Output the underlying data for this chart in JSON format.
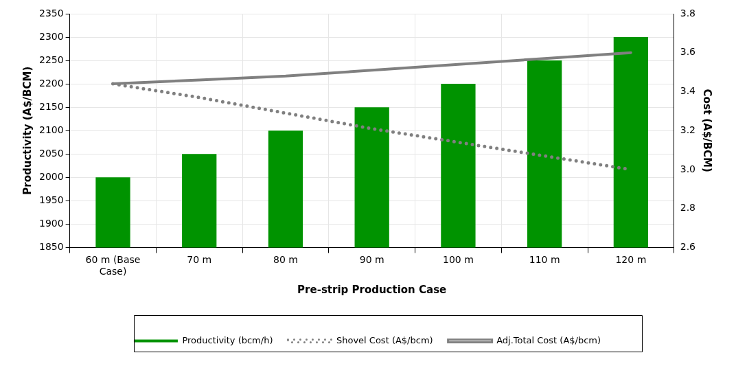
{
  "chart_data": {
    "type": "bar",
    "xlabel": "Pre-strip Production Case",
    "ylabel": "Productivity (A$/BCM)",
    "y2label": "Cost (A$/BCM)",
    "categories": [
      "60 m (Base Case)",
      "70 m",
      "80 m",
      "90 m",
      "100 m",
      "110 m",
      "120 m"
    ],
    "series": [
      {
        "name": "Productivity (bcm/h)",
        "color": "#009300",
        "values": [
          2000,
          2050,
          2100,
          2150,
          2200,
          2250,
          2300
        ]
      },
      {
        "name": "Shovel Cost (A$/bcm)",
        "type": "line",
        "axis": "y2",
        "line_style": "dotted",
        "marker": "none",
        "color": "#808080",
        "values": [
          3.44,
          3.37,
          3.29,
          3.21,
          3.14,
          3.07,
          3.0
        ]
      },
      {
        "name": "Adj.Total Cost (A$/bcm)",
        "type": "line",
        "axis": "y2",
        "line_style": "solid",
        "marker": "none",
        "color": "#808080",
        "values": [
          3.44,
          3.46,
          3.48,
          3.51,
          3.54,
          3.57,
          3.6
        ]
      }
    ],
    "ylim": [
      1850,
      2350
    ],
    "yticks": [
      1850,
      1900,
      1950,
      2000,
      2050,
      2100,
      2150,
      2200,
      2250,
      2300,
      2350
    ],
    "y2lim": [
      2.6,
      3.8
    ],
    "y2ticks": [
      {
        "value": 2.6,
        "label": "2.6"
      },
      {
        "value": 2.8,
        "label": "2.8"
      },
      {
        "value": 3.0,
        "label": "3.0"
      },
      {
        "value": 3.2,
        "label": "3.2"
      },
      {
        "value": 3.4,
        "label": "3.4"
      },
      {
        "value": 3.6,
        "label": "3.6"
      },
      {
        "value": 3.8,
        "label": "3.8"
      }
    ],
    "grid": true,
    "legend": "bottom"
  }
}
